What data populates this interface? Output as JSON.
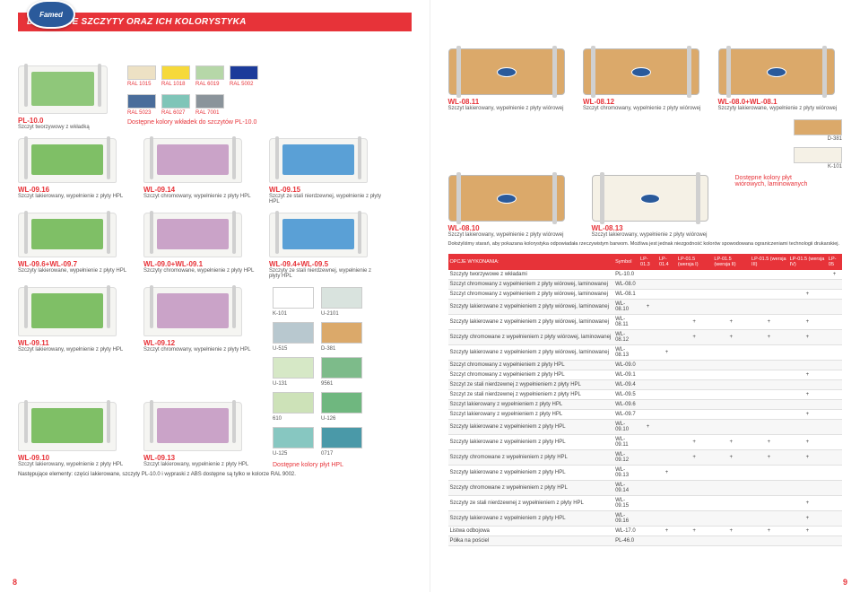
{
  "header_title": "DOSTĘPNE SZCZYTY ORAZ ICH KOLORYSTYKA",
  "logo": "Famed",
  "pl10": {
    "code": "PL-10.0",
    "desc": "Szczyt tworzywowy z wkładką"
  },
  "ral1": [
    {
      "label": "RAL 1015",
      "color": "#ede1c4"
    },
    {
      "label": "RAL 1018",
      "color": "#f6d93a"
    },
    {
      "label": "RAL 6019",
      "color": "#b6d7a8"
    },
    {
      "label": "RAL 5002",
      "color": "#1c3b9a"
    }
  ],
  "ral2": [
    {
      "label": "RAL 5023",
      "color": "#4a6d9b"
    },
    {
      "label": "RAL 6027",
      "color": "#7fc5b8"
    },
    {
      "label": "RAL 7001",
      "color": "#8b949b"
    }
  ],
  "ral_note": "Dostępne kolory wkładek do szczytów PL-10.0",
  "wl09_row": [
    {
      "code": "WL-09.16",
      "desc": "Szczyt lakierowany, wypełnienie z płyty HPL",
      "fill": "#7fbf66"
    },
    {
      "code": "WL-09.14",
      "desc": "Szczyt chromowany, wypełnienie z płyty HPL",
      "fill": "#caa3c8"
    },
    {
      "code": "WL-09.15",
      "desc": "Szczyt ze stali nierdzewnej, wypełnienie z płyty HPL",
      "fill": "#5aa0d6"
    }
  ],
  "wl09_pair_row": [
    {
      "code": "WL-09.6+WL-09.7",
      "desc": "Szczyty lakierowane, wypełnienie z płyty HPL",
      "fill": "#7fbf66"
    },
    {
      "code": "WL-09.0+WL-09.1",
      "desc": "Szczyty chromowane, wypełnienie z płyty HPL",
      "fill": "#caa3c8"
    },
    {
      "code": "WL-09.4+WL-09.5",
      "desc": "Szczyty ze stali nierdzewnej, wypełnienie z płyty HPL",
      "fill": "#5aa0d6"
    }
  ],
  "wl09_bottom1": [
    {
      "code": "WL-09.11",
      "desc": "Szczyt lakierowany, wypełnienie z płyty HPL",
      "fill": "#7fbf66"
    },
    {
      "code": "WL-09.12",
      "desc": "Szczyt chromowany, wypełnienie z płyty HPL",
      "fill": "#caa3c8"
    }
  ],
  "wl09_bottom2": [
    {
      "code": "WL-09.10",
      "desc": "Szczyt lakierowany, wypełnienie z płyty HPL",
      "fill": "#7fbf66"
    },
    {
      "code": "WL-09.13",
      "desc": "Szczyt lakierowany, wypełnienie z płyty HPL",
      "fill": "#caa3c8"
    }
  ],
  "footer_left": "Następujące elementy: części lakierowane, szczyty PL-10.0 i wypraski z ABS dostępne są tylko w kolorze RAL 9002.",
  "page_left": "8",
  "top_right": [
    {
      "code": "WL-08.11",
      "desc": "Szczyt lakierowany, wypełnienie z płyty wiórowej"
    },
    {
      "code": "WL-08.12",
      "desc": "Szczyt chromowany, wypełnienie z płyty wiórowej"
    },
    {
      "code": "WL-08.0+WL-08.1",
      "desc": "Szczyty lakierowane, wypełnienie z płyty wiórowej"
    }
  ],
  "d381": "D-381",
  "k101": "K-101",
  "k101b": "K-101",
  "laminate_note": "Dostępne kolory płyt wiórowych, laminowanych",
  "wl08_10": {
    "code": "WL-08.10",
    "desc": "Szczyt lakierowany, wypełnienie z płyty wiórowej"
  },
  "wl08_13": {
    "code": "WL-08.13",
    "desc": "Szczyt lakierowany, wypełnienie z płyty wiórowej"
  },
  "disclaimer": "Dołożyliśmy starań, aby pokazana kolorystyka odpowiadała rzeczywistym barwom. Możliwa jest jednak niezgodność kolorów spowodowana ograniczeniami technologii drukarskiej.",
  "hpl_colors": [
    [
      {
        "label": "K-101",
        "color": "#ffffff"
      },
      {
        "label": "U-2101",
        "color": "#d9e3de"
      }
    ],
    [
      {
        "label": "U-515",
        "color": "#b8c8cf"
      },
      {
        "label": "D-381",
        "color": "#dba96a"
      }
    ],
    [
      {
        "label": "U-131",
        "color": "#d6e8c6"
      },
      {
        "label": "9561",
        "color": "#7dbb8a"
      }
    ],
    [
      {
        "label": "610",
        "color": "#cde2b8"
      },
      {
        "label": "U-126",
        "color": "#6fb77f"
      }
    ],
    [
      {
        "label": "U-125",
        "color": "#87c7c1"
      },
      {
        "label": "0717",
        "color": "#4a99a8"
      }
    ]
  ],
  "hpl_note": "Dostępne kolory płyt HPL",
  "table_head": [
    "OPCJE WYKONANIA:",
    "Symbol",
    "LP-01.3",
    "LP-01.4",
    "LP-01.5 (wersja I)",
    "LP-01.5 (wersja II)",
    "LP-01.5 (wersja III)",
    "LP-01.5 (wersja IV)",
    "LP-05"
  ],
  "table_rows": [
    [
      "Szczyty tworzywowe z wkładami",
      "PL-10.0",
      "",
      "",
      "",
      "",
      "",
      "",
      "+"
    ],
    [
      "Szczyt chromowany z wypełnieniem z płyty wiórowej, laminowanej",
      "WL-08.0",
      "",
      "",
      "",
      "",
      "",
      "",
      ""
    ],
    [
      "Szczyt chromowany z wypełnieniem z płyty wiórowej, laminowanej",
      "WL-08.1",
      "",
      "",
      "",
      "",
      "",
      "+",
      ""
    ],
    [
      "Szczyty lakierowane z wypełnieniem z płyty wiórowej, laminowanej",
      "WL-08.10",
      "+",
      "",
      "",
      "",
      "",
      "",
      ""
    ],
    [
      "Szczyty lakierowane z wypełnieniem z płyty wiórowej, laminowanej",
      "WL-08.11",
      "",
      "",
      "+",
      "+",
      "+",
      "+",
      ""
    ],
    [
      "Szczyty chromowane z wypełnieniem z płyty wiórowej, laminowanej",
      "WL-08.12",
      "",
      "",
      "+",
      "+",
      "+",
      "+",
      ""
    ],
    [
      "Szczyty lakierowane z wypełnieniem z płyty wiórowej, laminowanej",
      "WL-08.13",
      "",
      "+",
      "",
      "",
      "",
      "",
      ""
    ],
    [
      "Szczyt chromowany z wypełnieniem z płyty HPL",
      "WL-09.0",
      "",
      "",
      "",
      "",
      "",
      "",
      ""
    ],
    [
      "Szczyt chromowany z wypełnieniem z płyty HPL",
      "WL-09.1",
      "",
      "",
      "",
      "",
      "",
      "+",
      ""
    ],
    [
      "Szczyt ze stali nierdzewnej z wypełnieniem z płyty HPL",
      "WL-09.4",
      "",
      "",
      "",
      "",
      "",
      "",
      ""
    ],
    [
      "Szczyt ze stali nierdzewnej z wypełnieniem z płyty HPL",
      "WL-09.5",
      "",
      "",
      "",
      "",
      "",
      "+",
      ""
    ],
    [
      "Szczyt lakierowany z wypełnieniem z płyty HPL",
      "WL-09.6",
      "",
      "",
      "",
      "",
      "",
      "",
      ""
    ],
    [
      "Szczyt lakierowany z wypełnieniem z płyty HPL",
      "WL-09.7",
      "",
      "",
      "",
      "",
      "",
      "+",
      ""
    ],
    [
      "Szczyty lakierowane z wypełnieniem z płyty HPL",
      "WL-09.10",
      "+",
      "",
      "",
      "",
      "",
      "",
      ""
    ],
    [
      "Szczyty lakierowane z wypełnieniem z płyty HPL",
      "WL-09.11",
      "",
      "",
      "+",
      "+",
      "+",
      "+",
      ""
    ],
    [
      "Szczyty chromowane z wypełnieniem z płyty HPL",
      "WL-09.12",
      "",
      "",
      "+",
      "+",
      "+",
      "+",
      ""
    ],
    [
      "Szczyty lakierowane z wypełnieniem z płyty HPL",
      "WL-09.13",
      "",
      "+",
      "",
      "",
      "",
      "",
      ""
    ],
    [
      "Szczyty chromowane z wypełnieniem z płyty HPL",
      "WL-09.14",
      "",
      "",
      "",
      "",
      "",
      "",
      ""
    ],
    [
      "Szczyty ze stali nierdzewnej z wypełnieniem z płyty HPL",
      "WL-09.15",
      "",
      "",
      "",
      "",
      "",
      "+",
      ""
    ],
    [
      "Szczyty lakierowane z wypełnieniem z płyty HPL",
      "WL-09.16",
      "",
      "",
      "",
      "",
      "",
      "+",
      ""
    ],
    [
      "Listwa odbojowa",
      "WL-17.0",
      "",
      "+",
      "+",
      "+",
      "+",
      "+",
      ""
    ],
    [
      "Półka na pościel",
      "PL-46.0",
      "",
      "",
      "",
      "",
      "",
      "",
      ""
    ]
  ],
  "page_right": "9"
}
